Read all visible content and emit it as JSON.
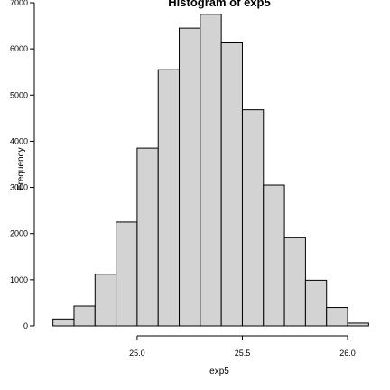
{
  "chart_data": {
    "type": "bar",
    "title": "Histogram of exp5",
    "xlabel": "exp5",
    "ylabel": "Frequency",
    "bins": [
      {
        "x0": 24.6,
        "x1": 24.7,
        "count": 150
      },
      {
        "x0": 24.7,
        "x1": 24.8,
        "count": 430
      },
      {
        "x0": 24.8,
        "x1": 24.9,
        "count": 1120
      },
      {
        "x0": 24.9,
        "x1": 25.0,
        "count": 2250
      },
      {
        "x0": 25.0,
        "x1": 25.1,
        "count": 3850
      },
      {
        "x0": 25.1,
        "x1": 25.2,
        "count": 5550
      },
      {
        "x0": 25.2,
        "x1": 25.3,
        "count": 6450
      },
      {
        "x0": 25.3,
        "x1": 25.4,
        "count": 6750
      },
      {
        "x0": 25.4,
        "x1": 25.5,
        "count": 6130
      },
      {
        "x0": 25.5,
        "x1": 25.6,
        "count": 4680
      },
      {
        "x0": 25.6,
        "x1": 25.7,
        "count": 3050
      },
      {
        "x0": 25.7,
        "x1": 25.8,
        "count": 1910
      },
      {
        "x0": 25.8,
        "x1": 25.9,
        "count": 990
      },
      {
        "x0": 25.9,
        "x1": 26.0,
        "count": 400
      },
      {
        "x0": 26.0,
        "x1": 26.1,
        "count": 60
      }
    ],
    "xticks": [
      "25.0",
      "25.5",
      "26.0"
    ],
    "xtick_values": [
      25.0,
      25.5,
      26.0
    ],
    "yticks": [
      "0",
      "1000",
      "2000",
      "3000",
      "4000",
      "5000",
      "6000",
      "7000"
    ],
    "ytick_values": [
      0,
      1000,
      2000,
      3000,
      4000,
      5000,
      6000,
      7000
    ],
    "xlim": [
      24.55,
      26.15
    ],
    "ylim": [
      0,
      7000
    ],
    "bar_fill": "#d3d3d3",
    "bar_stroke": "#000000",
    "grid": false
  }
}
